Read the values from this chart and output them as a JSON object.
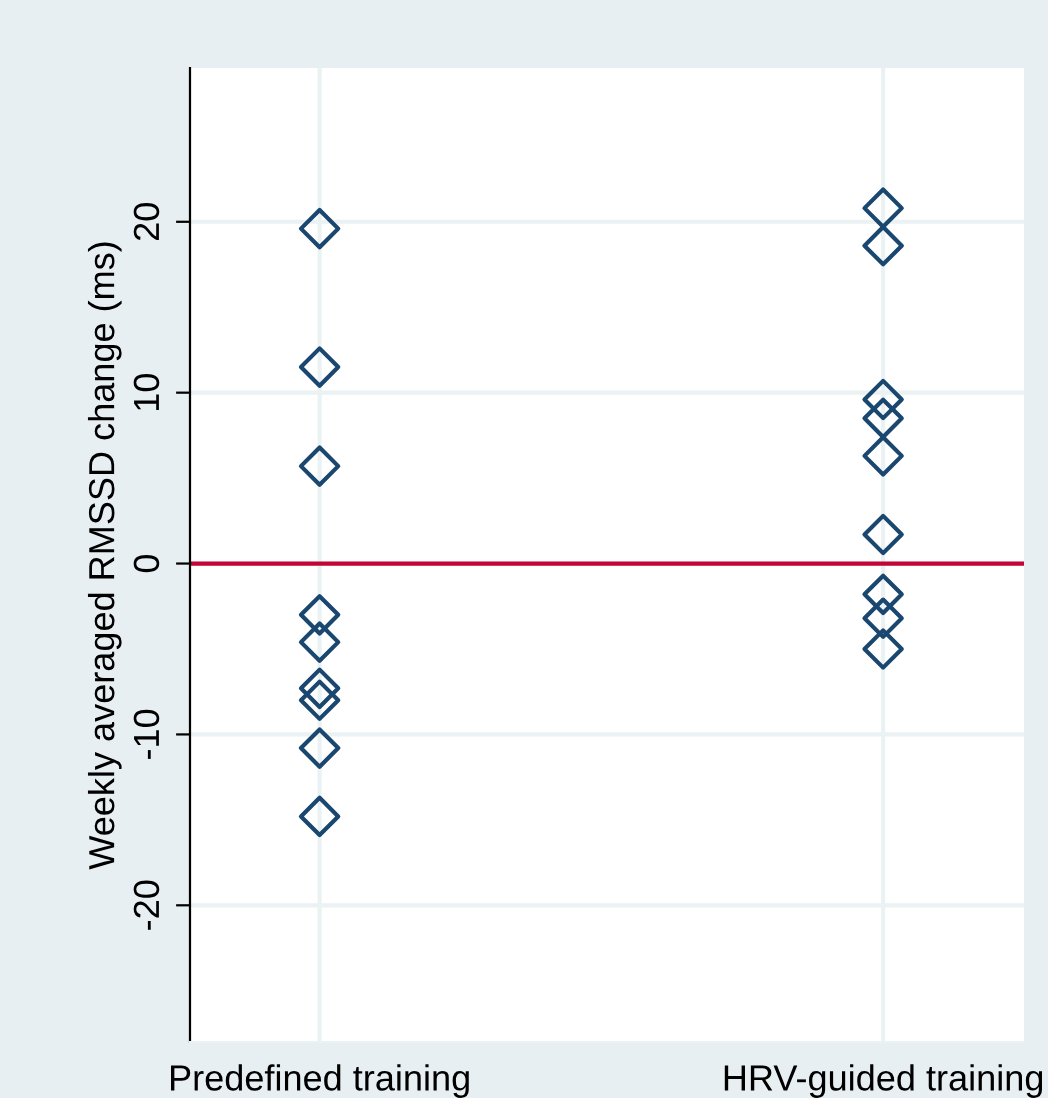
{
  "chart_data": {
    "type": "scatter",
    "ylabel": "Weekly averaged RMSSD change (ms)",
    "categories": [
      "Predefined training",
      "HRV-guided training"
    ],
    "series": [
      {
        "color": "#1a476f",
        "x": [
          "Predefined training",
          "Predefined training",
          "Predefined training",
          "Predefined training",
          "Predefined training",
          "Predefined training",
          "Predefined training",
          "Predefined training",
          "Predefined training"
        ],
        "values": [
          19.6,
          11.5,
          5.7,
          -3.0,
          -4.6,
          -7.3,
          -8.0,
          -10.8,
          -14.8
        ]
      },
      {
        "color": "#1a476f",
        "x": [
          "HRV-guided training",
          "HRV-guided training",
          "HRV-guided training",
          "HRV-guided training",
          "HRV-guided training",
          "HRV-guided training",
          "HRV-guided training",
          "HRV-guided training",
          "HRV-guided training"
        ],
        "values": [
          20.8,
          18.6,
          9.6,
          8.5,
          6.3,
          1.7,
          -1.8,
          -3.2,
          -5.0
        ]
      }
    ],
    "ylim": [
      -28,
      29
    ],
    "yticks": [
      -20,
      -10,
      0,
      10,
      20
    ],
    "ref_lines": [
      {
        "axis": "y",
        "value": 0,
        "color": "#c10534"
      }
    ],
    "marker": "diamond",
    "grid": true,
    "legend": false
  }
}
